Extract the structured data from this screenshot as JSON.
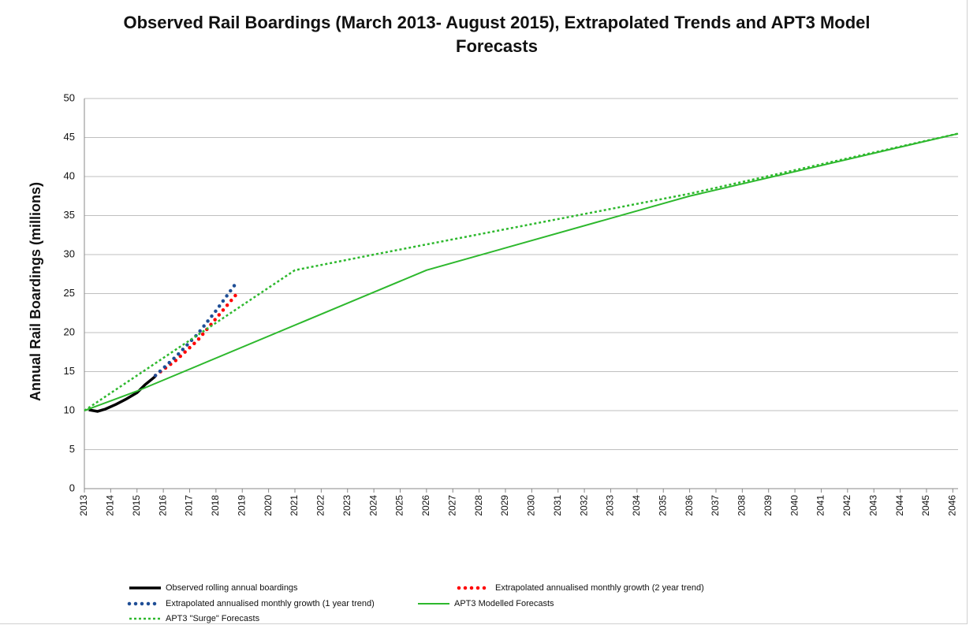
{
  "chart_data": {
    "type": "line",
    "title": "Observed Rail Boardings (March 2013- August 2015), Extrapolated Trends and APT3 Model Forecasts",
    "y_label": "Annual Rail Boardings  (millions)",
    "xlim": [
      2013,
      2046.2
    ],
    "xticks": [
      2013,
      2014,
      2015,
      2016,
      2017,
      2018,
      2019,
      2020,
      2021,
      2022,
      2023,
      2024,
      2025,
      2026,
      2027,
      2028,
      2029,
      2030,
      2031,
      2032,
      2033,
      2034,
      2035,
      2036,
      2037,
      2038,
      2039,
      2040,
      2041,
      2042,
      2043,
      2044,
      2045,
      2046
    ],
    "ylim": [
      0,
      50
    ],
    "yticks": [
      0,
      5,
      10,
      15,
      20,
      25,
      30,
      35,
      40,
      45,
      50
    ],
    "grid": true,
    "series": [
      {
        "name": "Observed rolling annual boardings",
        "color": "#000000",
        "style": "solid",
        "x": [
          2013.17,
          2013.5,
          2013.8,
          2014.2,
          2014.6,
          2015.0,
          2015.3,
          2015.7
        ],
        "values": [
          10.1,
          9.9,
          10.2,
          10.8,
          11.5,
          12.3,
          13.3,
          14.4
        ]
      },
      {
        "name": "Extrapolated annualised monthly growth (2 year trend)",
        "color": "#ff0000",
        "style": "dotted",
        "x": [
          2015.7,
          2016.5,
          2017.3,
          2018.0,
          2018.8
        ],
        "values": [
          14.5,
          16.5,
          19,
          21.8,
          25
        ]
      },
      {
        "name": "Extrapolated annualised monthly growth (1 year trend)",
        "color": "#1f4e96",
        "style": "dotted",
        "x": [
          2015.7,
          2016.5,
          2017.3,
          2018.0,
          2018.8
        ],
        "values": [
          14.5,
          17,
          19.8,
          22.8,
          26.5
        ]
      },
      {
        "name": "APT3 Modelled Forecasts",
        "color": "#2db82d",
        "style": "solid",
        "x": [
          2013,
          2015,
          2026,
          2036,
          2046.2
        ],
        "values": [
          10,
          12.5,
          28,
          37.5,
          45.5
        ]
      },
      {
        "name": "APT3 \"Surge\" Forecasts",
        "color": "#2db82d",
        "style": "dashed",
        "x": [
          2013,
          2021,
          2024,
          2036,
          2046.2
        ],
        "values": [
          10,
          28,
          30,
          37.8,
          45.5
        ]
      }
    ]
  }
}
